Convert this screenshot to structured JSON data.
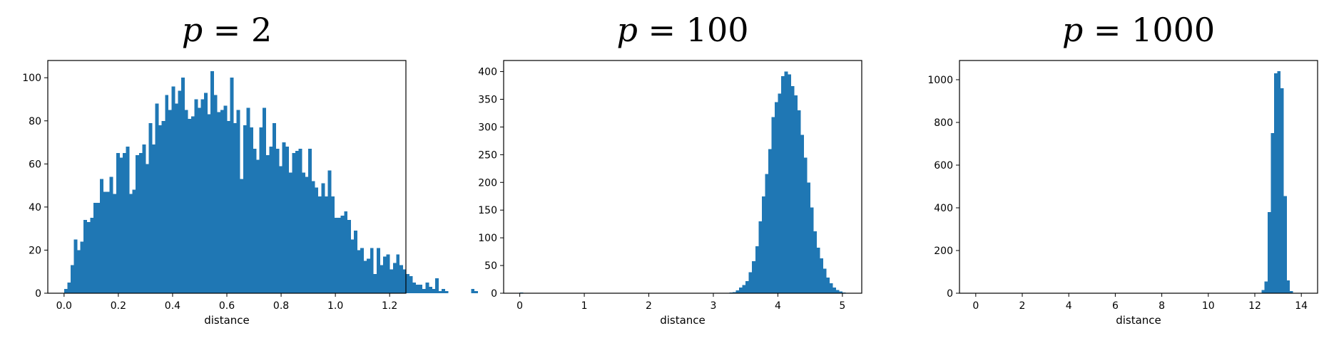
{
  "colors": {
    "bar": "#1f77b4",
    "axis": "#000000",
    "background": "#ffffff"
  },
  "chart_data": [
    {
      "type": "bar",
      "title": {
        "variable": "p",
        "operator": " = ",
        "value": "2"
      },
      "xlabel": "distance",
      "ylabel": "",
      "xlim": [
        -0.06,
        1.26
      ],
      "ylim": [
        0,
        108
      ],
      "xticks": [
        0.0,
        0.2,
        0.4,
        0.6,
        0.8,
        1.0,
        1.2
      ],
      "xtick_labels": [
        "0.0",
        "0.2",
        "0.4",
        "0.6",
        "0.8",
        "1.0",
        "1.2"
      ],
      "yticks": [
        0,
        20,
        40,
        60,
        80,
        100
      ],
      "ytick_labels": [
        "0",
        "20",
        "40",
        "60",
        "80",
        "100"
      ],
      "bin_start": 0.0,
      "bin_width": 0.012,
      "values": [
        2,
        5,
        13,
        25,
        20,
        24,
        34,
        33,
        35,
        42,
        42,
        53,
        47,
        47,
        54,
        46,
        65,
        63,
        65,
        68,
        46,
        48,
        64,
        65,
        69,
        60,
        79,
        69,
        88,
        78,
        80,
        92,
        85,
        96,
        88,
        94,
        100,
        85,
        81,
        82,
        90,
        86,
        90,
        93,
        83,
        103,
        92,
        84,
        85,
        87,
        80,
        100,
        79,
        85,
        53,
        78,
        86,
        77,
        67,
        62,
        77,
        86,
        64,
        68,
        79,
        67,
        59,
        70,
        68,
        56,
        65,
        66,
        67,
        56,
        54,
        67,
        52,
        49,
        45,
        51,
        45,
        57,
        45,
        35,
        35,
        36,
        38,
        34,
        25,
        29,
        20,
        21,
        15,
        16,
        21,
        9,
        21,
        13,
        17,
        18,
        11,
        14,
        18,
        13,
        11,
        9,
        8,
        5,
        4,
        4,
        2,
        5,
        3,
        2,
        7,
        1,
        2,
        1,
        0,
        0,
        0,
        0,
        0,
        0,
        0,
        2,
        1
      ],
      "grid": false,
      "legend": "none"
    },
    {
      "type": "bar",
      "title": {
        "variable": "p",
        "operator": " = ",
        "value": "100"
      },
      "xlabel": "distance",
      "ylabel": "",
      "xlim": [
        -0.25,
        5.3
      ],
      "ylim": [
        0,
        420
      ],
      "xticks": [
        0,
        1,
        2,
        3,
        4,
        5
      ],
      "xtick_labels": [
        "0",
        "1",
        "2",
        "3",
        "4",
        "5"
      ],
      "yticks": [
        0,
        50,
        100,
        150,
        200,
        250,
        300,
        350,
        400
      ],
      "ytick_labels": [
        "0",
        "50",
        "100",
        "150",
        "200",
        "250",
        "300",
        "350",
        "400"
      ],
      "bin_start": 0.0,
      "bin_width": 0.05,
      "values": [
        1,
        0,
        0,
        0,
        0,
        0,
        0,
        0,
        0,
        0,
        0,
        0,
        0,
        0,
        0,
        0,
        0,
        0,
        0,
        0,
        0,
        0,
        0,
        0,
        0,
        0,
        0,
        0,
        0,
        0,
        0,
        0,
        0,
        0,
        0,
        0,
        0,
        0,
        0,
        0,
        0,
        0,
        0,
        0,
        0,
        0,
        0,
        0,
        0,
        0,
        0,
        0,
        0,
        0,
        0,
        0,
        0,
        0,
        0,
        0,
        0,
        0,
        0,
        0,
        0,
        1,
        2,
        5,
        10,
        15,
        22,
        38,
        58,
        85,
        130,
        175,
        215,
        260,
        318,
        345,
        360,
        392,
        400,
        395,
        374,
        357,
        330,
        286,
        245,
        200,
        155,
        112,
        82,
        63,
        44,
        28,
        18,
        10,
        6,
        3,
        1
      ],
      "grid": false,
      "legend": "none"
    },
    {
      "type": "bar",
      "title": {
        "variable": "p",
        "operator": " = ",
        "value": "1000"
      },
      "xlabel": "distance",
      "ylabel": "",
      "xlim": [
        -0.7,
        14.7
      ],
      "ylim": [
        0,
        1090
      ],
      "xticks": [
        0,
        2,
        4,
        6,
        8,
        10,
        12,
        14
      ],
      "xtick_labels": [
        "0",
        "2",
        "4",
        "6",
        "8",
        "10",
        "12",
        "14"
      ],
      "yticks": [
        0,
        200,
        400,
        600,
        800,
        1000
      ],
      "ytick_labels": [
        "0",
        "200",
        "400",
        "600",
        "800",
        "1000"
      ],
      "bin_start": 0.0,
      "bin_width": 0.135,
      "values": [
        1,
        0,
        0,
        0,
        0,
        0,
        0,
        0,
        0,
        0,
        0,
        0,
        0,
        0,
        0,
        0,
        0,
        0,
        0,
        0,
        0,
        0,
        0,
        0,
        0,
        0,
        0,
        0,
        0,
        0,
        0,
        0,
        0,
        0,
        0,
        0,
        0,
        0,
        0,
        0,
        0,
        0,
        0,
        0,
        0,
        0,
        0,
        0,
        0,
        0,
        0,
        0,
        0,
        0,
        0,
        0,
        0,
        0,
        0,
        0,
        0,
        0,
        0,
        0,
        0,
        0,
        0,
        0,
        0,
        0,
        0,
        0,
        0,
        0,
        0,
        0,
        0,
        0,
        0,
        0,
        0,
        0,
        0,
        0,
        0,
        0,
        0,
        0,
        0,
        0,
        2,
        15,
        55,
        380,
        750,
        1030,
        1040,
        960,
        455,
        60,
        10
      ],
      "grid": false,
      "legend": "none"
    }
  ]
}
